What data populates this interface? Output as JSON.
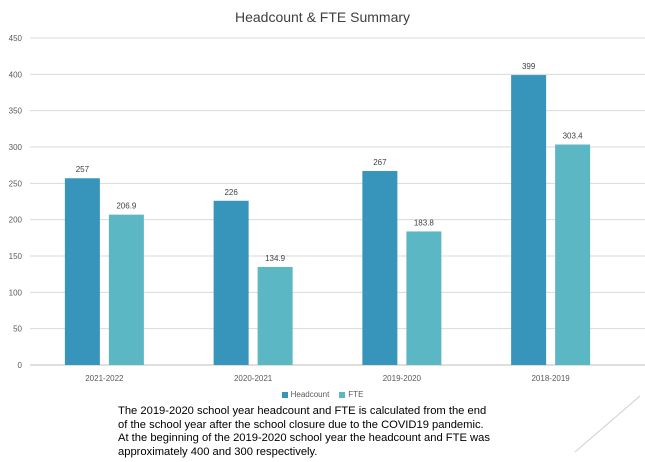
{
  "chart_data": {
    "type": "bar",
    "title": "Headcount & FTE Summary",
    "categories": [
      "2021-2022",
      "2020-2021",
      "2019-2020",
      "2018-2019"
    ],
    "series": [
      {
        "name": "Headcount",
        "values": [
          257,
          226,
          267,
          399
        ],
        "labels": [
          "257",
          "226",
          "267",
          "399"
        ],
        "color": "#3795bb"
      },
      {
        "name": "FTE",
        "values": [
          206.9,
          134.9,
          183.8,
          303.4
        ],
        "labels": [
          "206.9",
          "134.9",
          "183.8",
          "303.4"
        ],
        "color": "#5bb7c3"
      }
    ],
    "ylim": [
      0,
      450
    ],
    "yticks": [
      0,
      50,
      100,
      150,
      200,
      250,
      300,
      350,
      400,
      450
    ],
    "grid": true,
    "legend_position": "bottom"
  },
  "note": {
    "line1": "The 2019-2020 school year headcount and FTE is calculated from the end",
    "line2": "of the school year after the school closure due to the COVID19 pandemic.",
    "line3": "At the beginning of the 2019-2020 school year the headcount and FTE was",
    "line4": "approximately 400 and 300 respectively."
  }
}
